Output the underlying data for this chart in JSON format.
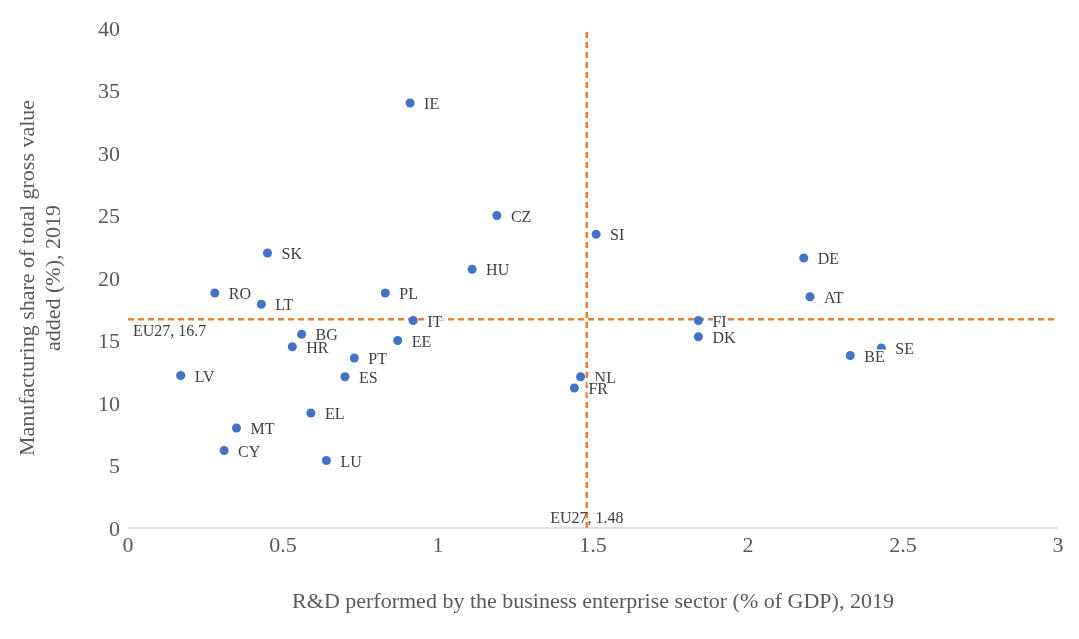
{
  "chart_data": {
    "type": "scatter",
    "xlabel": "R&D performed by the business enterprise sector (% of GDP), 2019",
    "ylabel": "Manufacturing share of total gross value added (%), 2019",
    "x": [
      0.91,
      1.19,
      1.51,
      2.18,
      2.2,
      0.45,
      1.11,
      0.28,
      0.83,
      0.43,
      1.84,
      0.92,
      0.56,
      0.87,
      1.84,
      0.53,
      0.73,
      2.43,
      2.33,
      0.17,
      0.7,
      1.46,
      1.44,
      0.59,
      0.35,
      0.31,
      0.64
    ],
    "values": [
      34,
      25,
      23.5,
      21.6,
      18.5,
      22,
      20.7,
      18.8,
      18.8,
      17.9,
      16.6,
      16.6,
      15.5,
      15,
      15.3,
      14.5,
      13.6,
      14.4,
      13.8,
      12.2,
      12.1,
      12.1,
      11.2,
      9.2,
      8,
      6.2,
      5.4
    ],
    "color": "#4472c4",
    "marker": "circle",
    "grid": false,
    "legend": false,
    "xlim": [
      0,
      3
    ],
    "xticks": [
      0,
      0.5,
      1,
      1.5,
      2,
      2.5,
      3
    ],
    "ylim": [
      0,
      40
    ],
    "yticks": [
      0,
      5,
      10,
      15,
      20,
      25,
      30,
      35,
      40
    ],
    "ref_lines": [
      {
        "axis": "x",
        "value": 1.48,
        "label": "EU27, 1.48",
        "color": "#ed7d31",
        "line_style": "dashed"
      },
      {
        "axis": "y",
        "value": 16.7,
        "label": "EU27, 16.7",
        "color": "#ed7d31",
        "line_style": "dashed"
      }
    ],
    "annotations": [
      {
        "text": "IE",
        "x": 0.91,
        "y": 34
      },
      {
        "text": "CZ",
        "x": 1.19,
        "y": 25
      },
      {
        "text": "SI",
        "x": 1.51,
        "y": 23.5
      },
      {
        "text": "DE",
        "x": 2.18,
        "y": 21.6
      },
      {
        "text": "AT",
        "x": 2.2,
        "y": 18.5
      },
      {
        "text": "SK",
        "x": 0.45,
        "y": 22
      },
      {
        "text": "HU",
        "x": 1.11,
        "y": 20.7
      },
      {
        "text": "RO",
        "x": 0.28,
        "y": 18.8
      },
      {
        "text": "PL",
        "x": 0.83,
        "y": 18.8
      },
      {
        "text": "LT",
        "x": 0.43,
        "y": 17.9
      },
      {
        "text": "FI",
        "x": 1.84,
        "y": 16.6
      },
      {
        "text": "IT",
        "x": 0.92,
        "y": 16.6
      },
      {
        "text": "BG",
        "x": 0.56,
        "y": 15.5
      },
      {
        "text": "EE",
        "x": 0.87,
        "y": 15
      },
      {
        "text": "DK",
        "x": 1.84,
        "y": 15.3
      },
      {
        "text": "HR",
        "x": 0.53,
        "y": 14.5
      },
      {
        "text": "PT",
        "x": 0.73,
        "y": 13.6
      },
      {
        "text": "SE",
        "x": 2.43,
        "y": 14.4
      },
      {
        "text": "BE",
        "x": 2.33,
        "y": 13.8
      },
      {
        "text": "LV",
        "x": 0.17,
        "y": 12.2
      },
      {
        "text": "ES",
        "x": 0.7,
        "y": 12.1
      },
      {
        "text": "NL",
        "x": 1.46,
        "y": 12.1
      },
      {
        "text": "FR",
        "x": 1.44,
        "y": 11.2
      },
      {
        "text": "EL",
        "x": 0.59,
        "y": 9.2
      },
      {
        "text": "MT",
        "x": 0.35,
        "y": 8
      },
      {
        "text": "CY",
        "x": 0.31,
        "y": 6.2
      },
      {
        "text": "LU",
        "x": 0.64,
        "y": 5.4
      }
    ]
  }
}
